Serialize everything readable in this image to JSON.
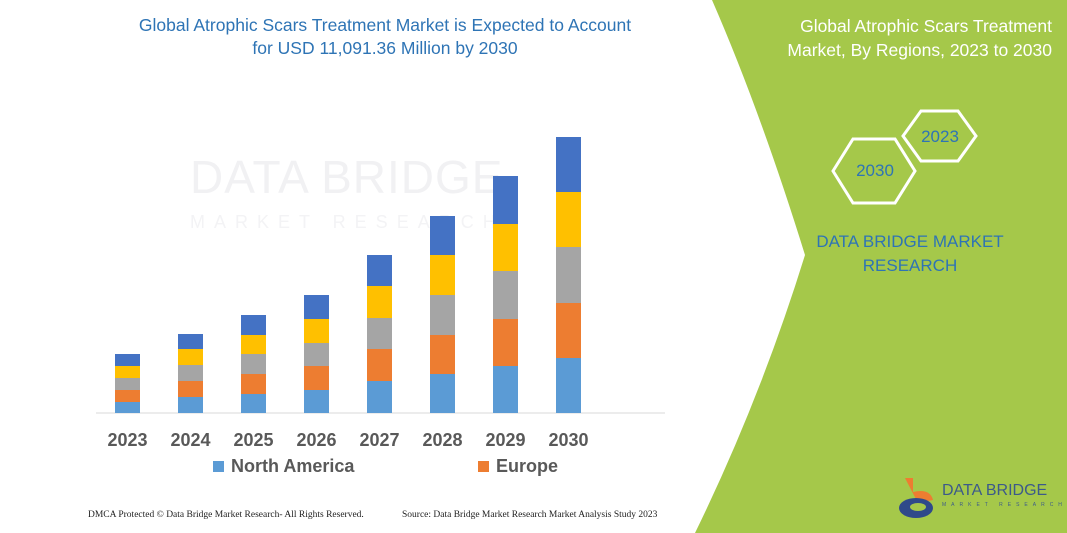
{
  "header": {
    "title_line1": "Global Atrophic Scars Treatment Market is Expected to Account",
    "title_line2": "for USD 11,091.36 Million by 2030"
  },
  "side_panel": {
    "title_line1": "Global Atrophic Scars Treatment",
    "title_line2": "Market, By Regions, 2023 to 2030",
    "hex_start": "2023",
    "hex_end": "2030",
    "brand_line1": "DATA BRIDGE MARKET",
    "brand_line2": "RESEARCH",
    "logo_text": "DATA BRIDGE",
    "logo_subtext": "MARKET RESEARCH",
    "panel_color": "#a5c84a"
  },
  "watermark": {
    "line1": "DATA BRIDGE",
    "line2": "MARKET RESEARCH"
  },
  "footer": {
    "left": "DMCA Protected © Data Bridge Market Research-  All Rights Reserved.",
    "right": "Source: Data Bridge Market Research  Market Analysis Study 2023"
  },
  "chart_data": {
    "type": "bar",
    "stacked": true,
    "categories": [
      "2023",
      "2024",
      "2025",
      "2026",
      "2027",
      "2028",
      "2029",
      "2030"
    ],
    "series": [
      {
        "name": "North America",
        "color": "#5b9bd5",
        "values": [
          11,
          16,
          19,
          23,
          32,
          39,
          47,
          55
        ]
      },
      {
        "name": "Europe",
        "color": "#ed7d31",
        "values": [
          12,
          16,
          20,
          24,
          32,
          39,
          47,
          55
        ]
      },
      {
        "color": "#a5a5a5",
        "values": [
          12,
          16,
          20,
          23,
          31,
          40,
          48,
          56
        ]
      },
      {
        "color": "#ffc000",
        "values": [
          12,
          16,
          19,
          24,
          32,
          40,
          47,
          55
        ]
      },
      {
        "color": "#4472c4",
        "values": [
          12,
          15,
          20,
          24,
          31,
          39,
          48,
          55
        ]
      }
    ],
    "legend": [
      "North America",
      "Europe"
    ],
    "legend_position": "bottom",
    "grid": false,
    "y_axis_shown": false
  }
}
